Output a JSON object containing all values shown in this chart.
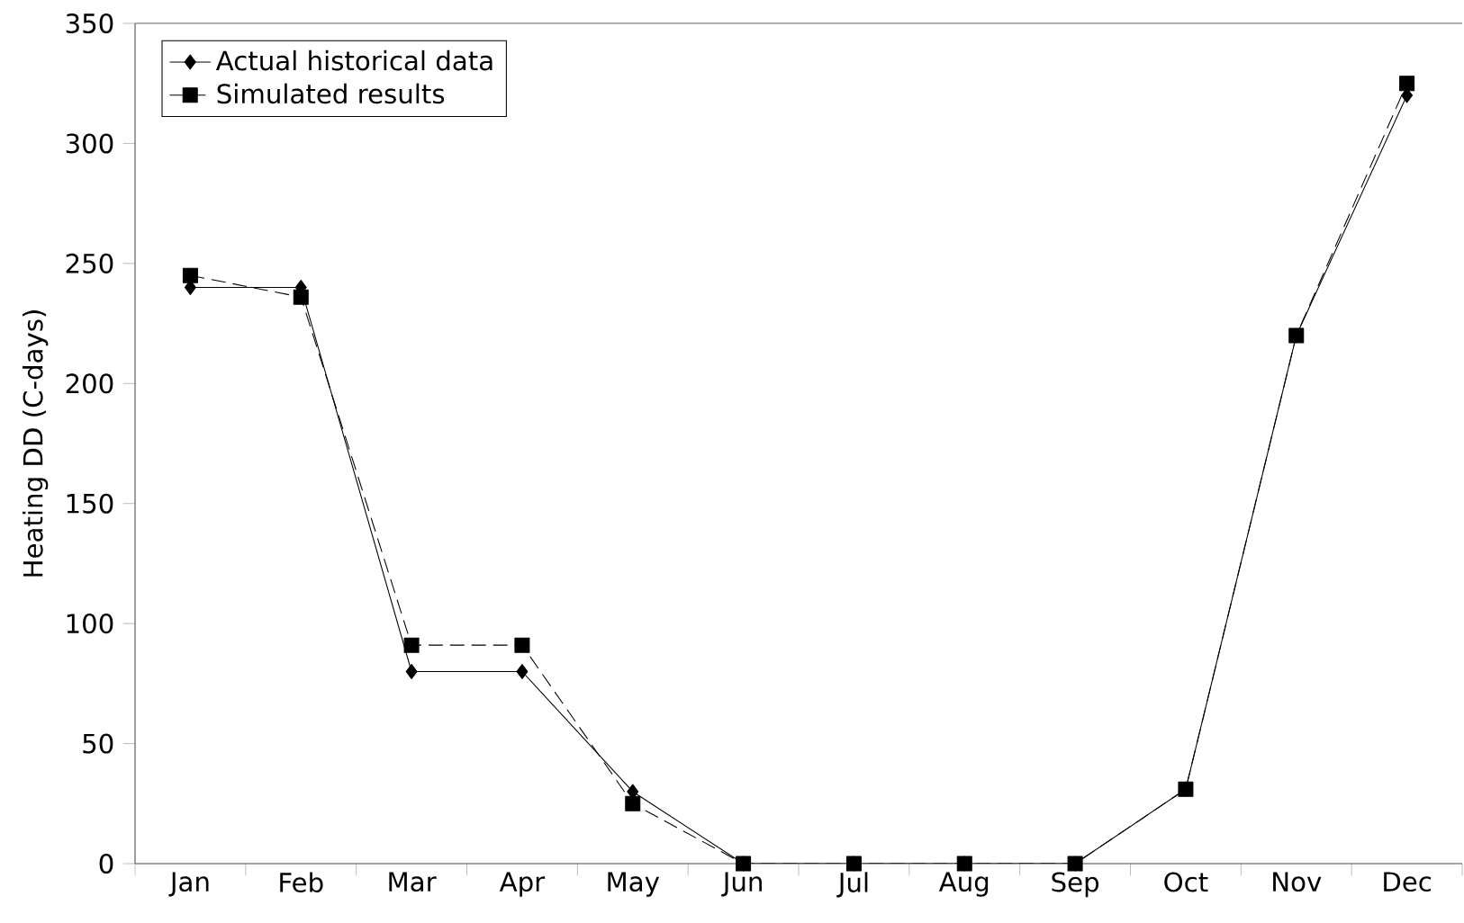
{
  "chart_data": {
    "type": "line",
    "ylabel": "Heating DD (C-days)",
    "categories": [
      "Jan",
      "Feb",
      "Mar",
      "Apr",
      "May",
      "Jun",
      "Jul",
      "Aug",
      "Sep",
      "Oct",
      "Nov",
      "Dec"
    ],
    "series": [
      {
        "name": "Actual historical data",
        "color": "#000000",
        "marker": "diamond",
        "line_style": "solid",
        "values": [
          240,
          240,
          80,
          80,
          30,
          0,
          0,
          0,
          0,
          31,
          220,
          320
        ]
      },
      {
        "name": "Simulated results",
        "color": "#000000",
        "marker": "square",
        "line_style": "dashed",
        "values": [
          245,
          236,
          91,
          91,
          25,
          0,
          0,
          0,
          0,
          31,
          220,
          325
        ]
      }
    ],
    "ylim": [
      0,
      350
    ],
    "yticks": [
      0,
      50,
      100,
      150,
      200,
      250,
      300,
      350
    ],
    "grid": false,
    "legend": "top left"
  }
}
